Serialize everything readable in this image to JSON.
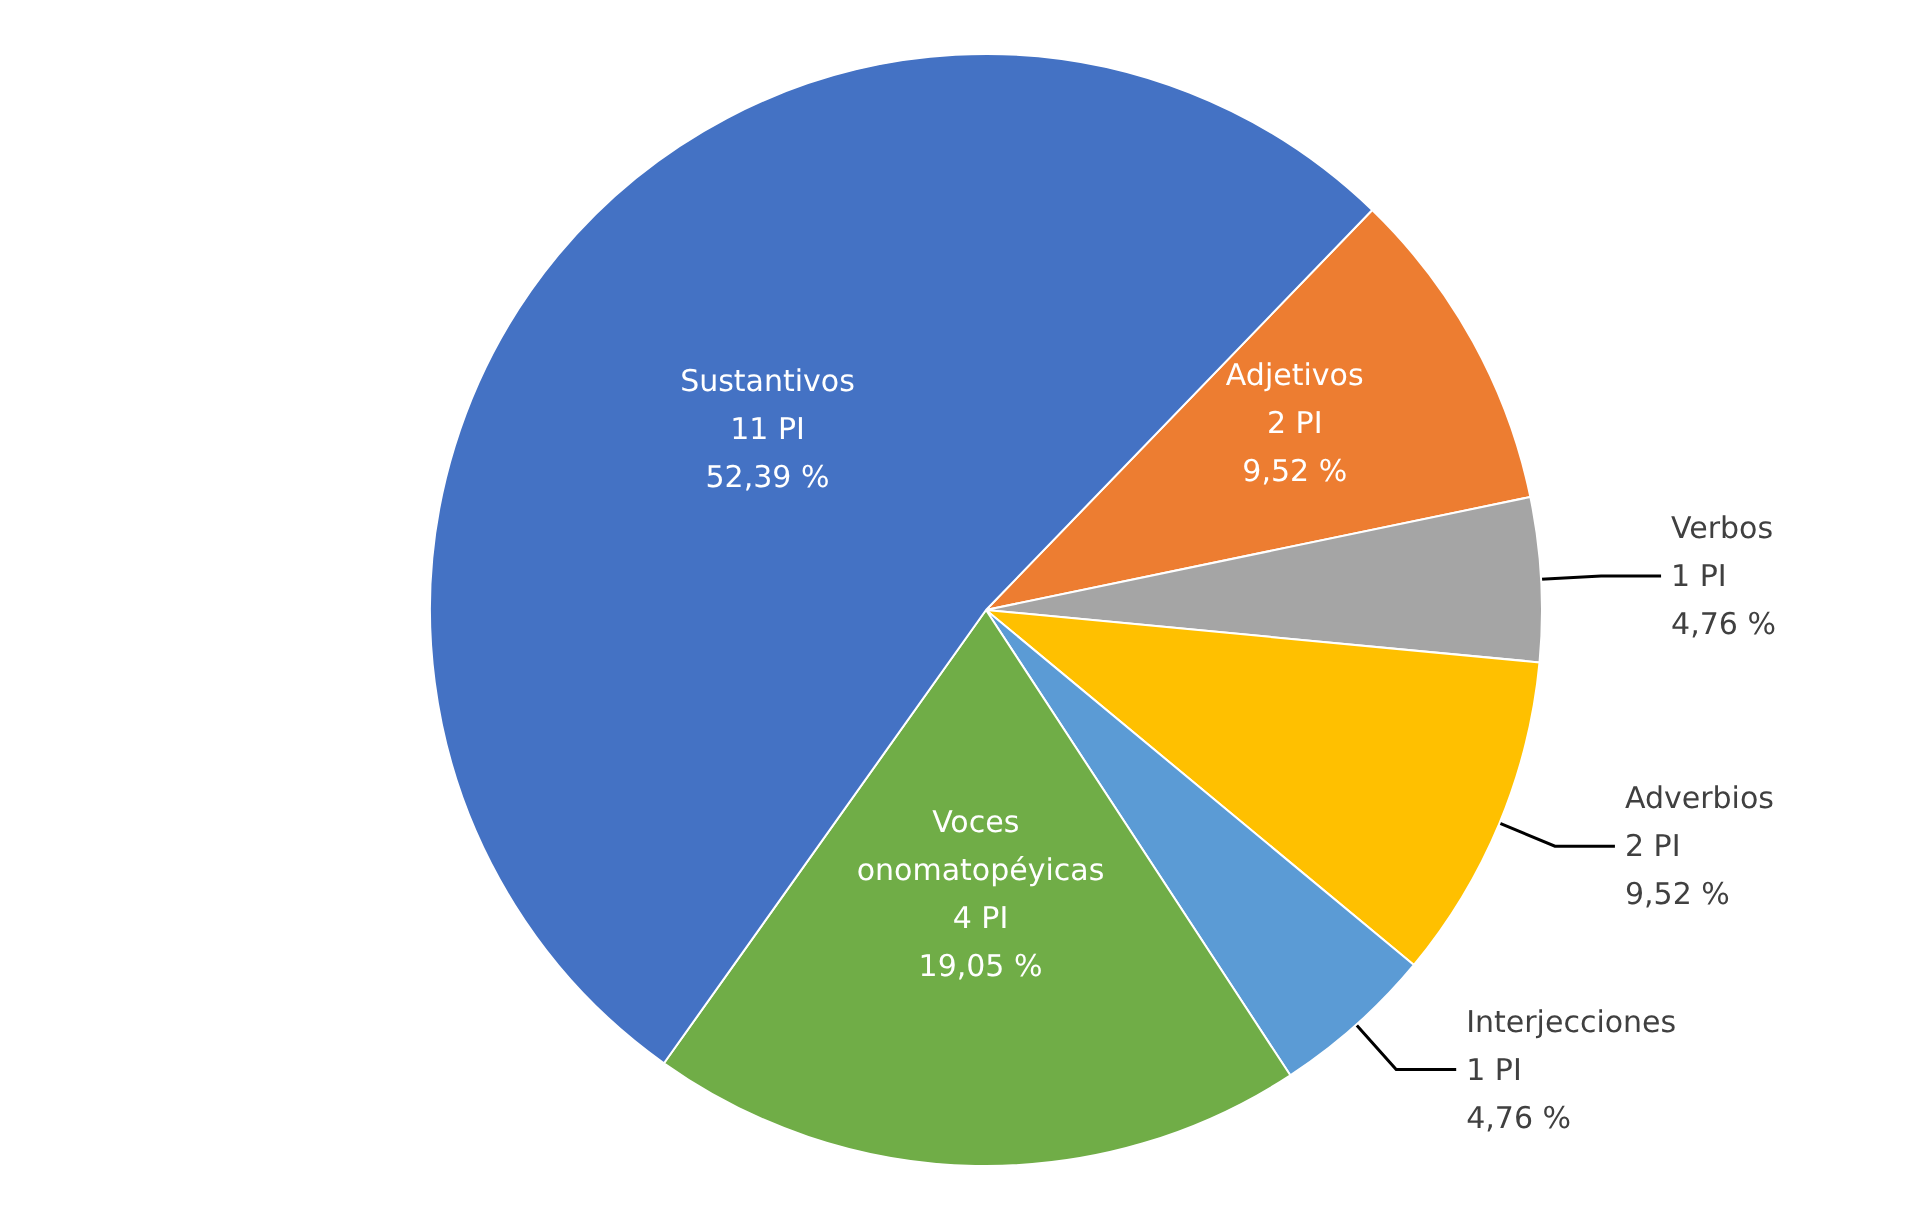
{
  "chart_data": {
    "type": "pie",
    "categories": [
      "Adjetivos",
      "Verbos",
      "Adverbios",
      "Interjecciones",
      "Voces onomatopéyicas",
      "Sustantivos"
    ],
    "values": [
      9.52,
      4.76,
      9.52,
      4.76,
      19.05,
      52.39
    ],
    "value_labels": [
      "2 PI\n9,52 %",
      "1 PI\n4,76 %",
      "2 PI\n9,52 %",
      "1 PI\n4,76 %",
      "4 PI\n19,05 %",
      "11 PI\n52,39 %"
    ],
    "colors": [
      "#ed7d31",
      "#a5a5a5",
      "#ffc000",
      "#5b9bd5",
      "#70ad47",
      "#4472c4"
    ],
    "legend": false
  }
}
